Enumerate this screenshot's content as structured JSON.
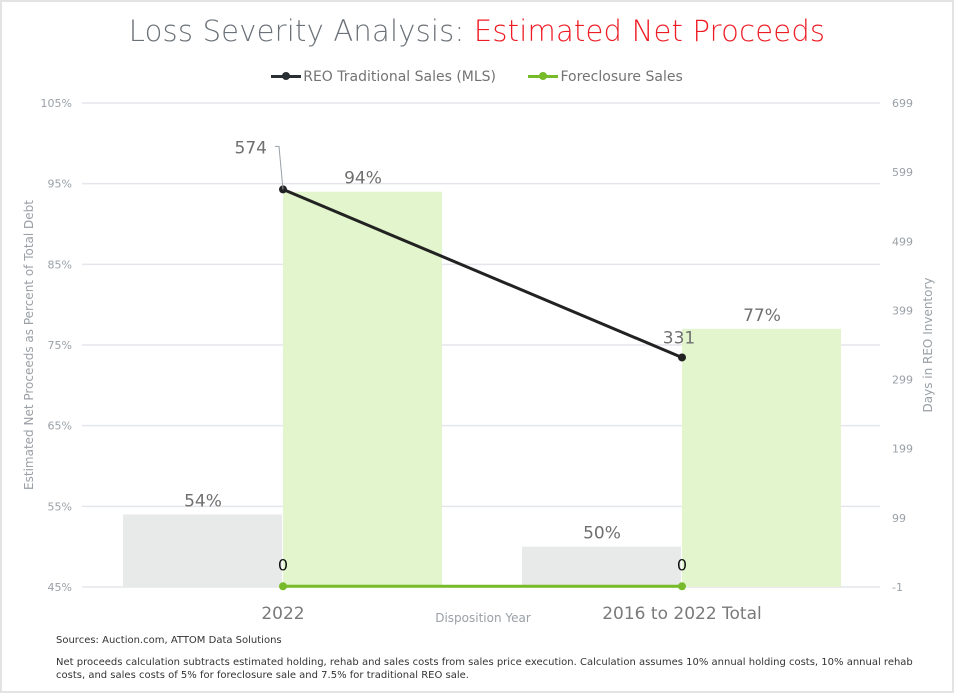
{
  "chart_data": {
    "type": "bar",
    "title_prefix": "Loss Severity Analysis: ",
    "title_accent": "Estimated Net Proceeds",
    "categories": [
      "2022",
      "2016 to 2022 Total"
    ],
    "xlabel": "Disposition Year",
    "ylabel": "Estimated Net Proceeds as Percent of Total Debt",
    "y2label": "Days in REO Inventory",
    "ylim": [
      45,
      105
    ],
    "y_ticks": [
      "105%",
      "95%",
      "85%",
      "75%",
      "65%",
      "55%",
      "45%"
    ],
    "y_tick_values": [
      105,
      95,
      85,
      75,
      65,
      55,
      45
    ],
    "y2lim": [
      -1,
      699
    ],
    "y2_ticks": [
      "699",
      "599",
      "499",
      "399",
      "299",
      "199",
      "99",
      "-1"
    ],
    "y2_tick_values": [
      699,
      599,
      499,
      399,
      299,
      199,
      99,
      -1
    ],
    "grid": true,
    "legend_position": "top-center",
    "bar_series": [
      {
        "name": "REO Traditional Sales (MLS) net proceeds",
        "values": [
          54,
          50
        ],
        "labels": [
          "54%",
          "50%"
        ],
        "color": "#e8e9e9"
      },
      {
        "name": "Foreclosure Sales net proceeds",
        "values": [
          94,
          77
        ],
        "labels": [
          "94%",
          "77%"
        ],
        "color": "#e2f5cc"
      }
    ],
    "line_series": [
      {
        "name": "REO Traditional Sales (MLS)",
        "values": [
          574,
          331
        ],
        "labels": [
          "574",
          "331"
        ],
        "color": "#222222",
        "axis": "right"
      },
      {
        "name": "Foreclosure Sales",
        "values": [
          0,
          0
        ],
        "labels": [
          "0",
          "0"
        ],
        "color": "#77bb2a",
        "axis": "right"
      }
    ]
  },
  "legend": [
    {
      "label": "REO Traditional Sales (MLS)",
      "color": "#2a2f33"
    },
    {
      "label": "Foreclosure Sales",
      "color": "#77bb2a"
    }
  ],
  "footer": {
    "sources": "Sources: Auction.com, ATTOM Data Solutions",
    "note": "Net proceeds calculation subtracts estimated holding, rehab and sales costs from sales price execution. Calculation assumes 10% annual holding costs, 10% annual rehab costs, and sales costs of 5% for foreclosure sale and 7.5% for traditional REO sale."
  }
}
